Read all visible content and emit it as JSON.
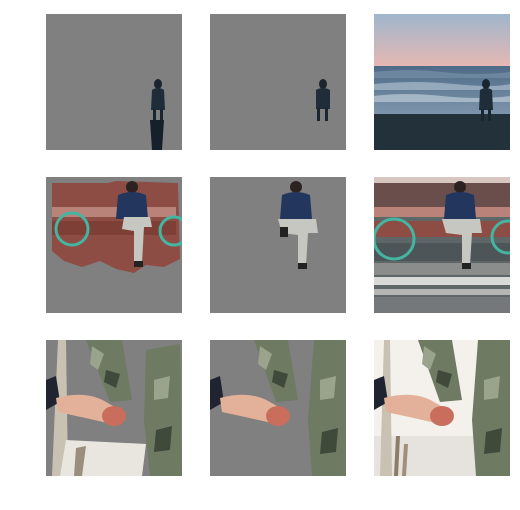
{
  "grid": {
    "rows": [
      {
        "scene": "beach-person",
        "tiles": [
          {
            "role": "segmentation-mask-predicted"
          },
          {
            "role": "segmentation-mask-reference"
          },
          {
            "role": "original-photo"
          }
        ]
      },
      {
        "scene": "man-on-bench",
        "tiles": [
          {
            "role": "segmentation-mask-predicted"
          },
          {
            "role": "segmentation-mask-reference"
          },
          {
            "role": "original-photo"
          }
        ]
      },
      {
        "scene": "holding-hands",
        "tiles": [
          {
            "role": "segmentation-mask-predicted"
          },
          {
            "role": "segmentation-mask-reference"
          },
          {
            "role": "original-photo"
          }
        ]
      }
    ]
  },
  "colors": {
    "mask_gray": "#808080",
    "sky_top": "#9fb6cc",
    "sky_glow": "#e8b8b2",
    "sea": "#5a7690",
    "sand_dark": "#23313a",
    "bench_red": "#9a4f45",
    "camo": "#6e7a62",
    "skin": "#e3b199"
  }
}
